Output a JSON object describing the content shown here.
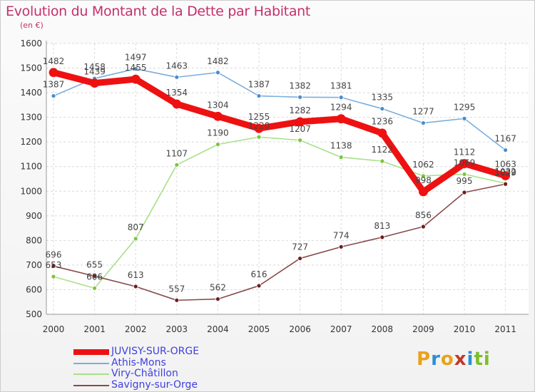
{
  "header": {
    "title": "Evolution du Montant de la Dette par Habitant",
    "subtitle": "(en €)"
  },
  "logo": {
    "text": "Proxiti",
    "letters": [
      "P",
      "r",
      "o",
      "x",
      "i",
      "t",
      "i"
    ],
    "colors": [
      "#e8a21b",
      "#2c8fd6",
      "#e8a21b",
      "#c0392b",
      "#2c8fd6",
      "#7cbf2a",
      "#7cbf2a"
    ]
  },
  "chart_data": {
    "type": "line",
    "title": "Evolution du Montant de la Dette par Habitant",
    "subtitle": "(en €)",
    "xlabel": "",
    "ylabel": "",
    "x": [
      "2000",
      "2001",
      "2002",
      "2003",
      "2004",
      "2005",
      "2006",
      "2007",
      "2008",
      "2009",
      "2010",
      "2011"
    ],
    "ylim": [
      500,
      1600
    ],
    "yticks": [
      500,
      600,
      700,
      800,
      900,
      1000,
      1100,
      1200,
      1300,
      1400,
      1500,
      1600
    ],
    "grid": true,
    "legend_position": "bottom-left",
    "series": [
      {
        "name": "JUVISY-SUR-ORGE",
        "color": "#ee1111",
        "marker": "#ee1111",
        "width": 9,
        "values": [
          1482,
          1439,
          1455,
          1354,
          1304,
          1255,
          1282,
          1294,
          1236,
          998,
          1112,
          1063
        ]
      },
      {
        "name": "Athis-Mons",
        "color": "#7aaedd",
        "marker": "#4d8cc8",
        "width": 1.6,
        "values": [
          1387,
          1458,
          1497,
          1463,
          1482,
          1387,
          1382,
          1381,
          1335,
          1277,
          1295,
          1167
        ]
      },
      {
        "name": "Viry-Châtillon",
        "color": "#a9e08a",
        "marker": "#7cc63b",
        "width": 1.6,
        "values": [
          653,
          606,
          807,
          1107,
          1190,
          1220,
          1207,
          1138,
          1122,
          1062,
          1069,
          1032
        ]
      },
      {
        "name": "Savigny-sur-Orge",
        "color": "#8a4a4a",
        "marker": "#6b1f1f",
        "width": 1.6,
        "values": [
          696,
          655,
          613,
          557,
          562,
          616,
          727,
          774,
          813,
          856,
          995,
          1029
        ]
      }
    ]
  }
}
